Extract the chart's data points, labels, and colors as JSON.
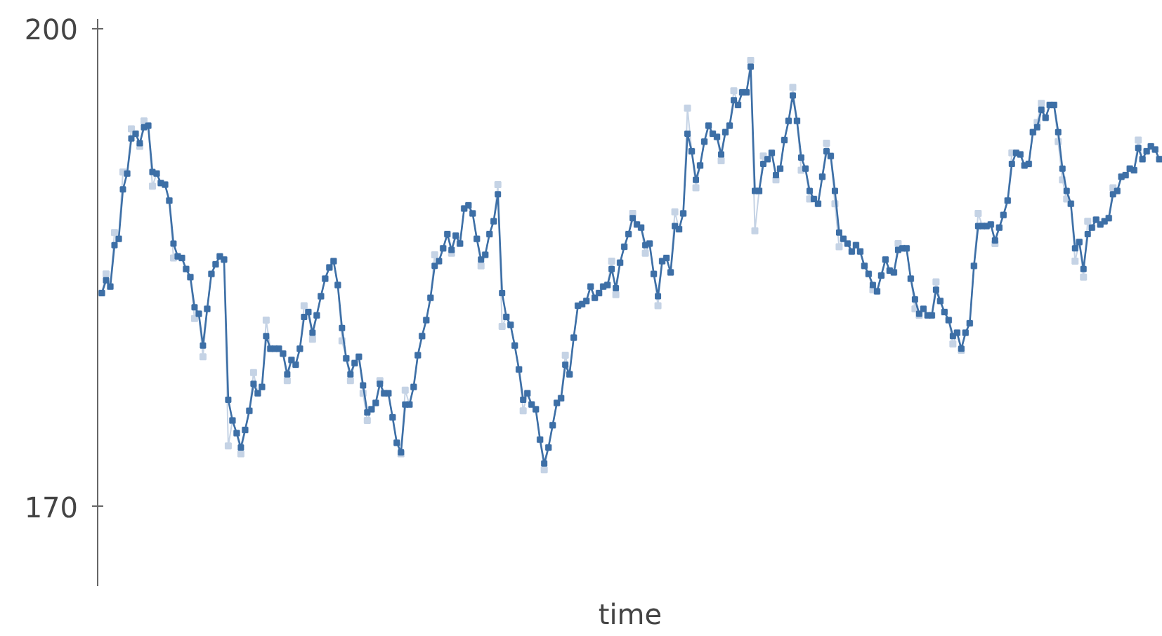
{
  "chart_data": {
    "type": "line",
    "xlabel": "time",
    "marker": "square",
    "grid": false,
    "tick_labels": "y",
    "ylim": [
      165,
      200.6
    ],
    "yticks": [
      170,
      200
    ],
    "categories": [
      null,
      null,
      null,
      null,
      null,
      null,
      null,
      null,
      null,
      null,
      null,
      null,
      null,
      null,
      null,
      null,
      null,
      null,
      null,
      null,
      null,
      null,
      null,
      null,
      null,
      null,
      null,
      null,
      null,
      null,
      null,
      null,
      null,
      null,
      null,
      null,
      null,
      null,
      null,
      null,
      null,
      null,
      null,
      null,
      null,
      null,
      null,
      null,
      null,
      null,
      null,
      null,
      null,
      null,
      null,
      null,
      null,
      null,
      null,
      null,
      null,
      null,
      null,
      null,
      null,
      null,
      null,
      null,
      null,
      null,
      null,
      null,
      null,
      null,
      null,
      null,
      null,
      null,
      null,
      null,
      null,
      null,
      null,
      null,
      null,
      null,
      null,
      null,
      null,
      null,
      null,
      null,
      null,
      null,
      null,
      null,
      null,
      null,
      null,
      null,
      null,
      null,
      null,
      null,
      null,
      null,
      null,
      null,
      null,
      null,
      null,
      null,
      null,
      null,
      null,
      null,
      null,
      null,
      null,
      null,
      null,
      null,
      null,
      null,
      null,
      null,
      null,
      null,
      null,
      null,
      null,
      null,
      null,
      null,
      null,
      null,
      null,
      null,
      null,
      null,
      null,
      null,
      null,
      null,
      null,
      null,
      null,
      null,
      null,
      null,
      null,
      null,
      null,
      null,
      null,
      null,
      null,
      null,
      null,
      null,
      null,
      null,
      null,
      null,
      null,
      null,
      null,
      null,
      null,
      null,
      null,
      null,
      null,
      null,
      null,
      null,
      null,
      null,
      null,
      null,
      null,
      null,
      null,
      null,
      null,
      null,
      null,
      null,
      null,
      null,
      null,
      null,
      null,
      null,
      null,
      null,
      null,
      null,
      null,
      null,
      null,
      null,
      null,
      null,
      null,
      null,
      null,
      null,
      null,
      null,
      null,
      null,
      null,
      null,
      null,
      null,
      null,
      null,
      null,
      null,
      null,
      null,
      null,
      null,
      null,
      null,
      null,
      null,
      null,
      null,
      null,
      null,
      null,
      null,
      null,
      null,
      null,
      null,
      null,
      null,
      null,
      null,
      null,
      null,
      null,
      null,
      null,
      null,
      null,
      null,
      null,
      null
    ],
    "series": [
      {
        "color": "#c5d3e5",
        "values": [
          183.4,
          184.6,
          183.8,
          187.2,
          186.8,
          191.0,
          190.9,
          193.7,
          193.4,
          192.6,
          194.2,
          193.9,
          190.1,
          190.9,
          190.3,
          190.2,
          189.2,
          185.6,
          185.7,
          185.6,
          184.9,
          184.4,
          181.8,
          182.1,
          179.4,
          182.4,
          184.6,
          185.2,
          185.7,
          185.5,
          173.8,
          175.4,
          174.6,
          173.3,
          174.8,
          176.0,
          178.4,
          177.1,
          177.5,
          181.7,
          179.9,
          179.9,
          179.9,
          179.6,
          177.9,
          179.2,
          178.9,
          179.9,
          182.6,
          182.2,
          180.5,
          182.0,
          183.2,
          184.3,
          185.0,
          185.4,
          183.9,
          180.4,
          179.3,
          177.9,
          179.0,
          179.4,
          177.1,
          175.4,
          176.1,
          176.5,
          177.9,
          177.1,
          177.1,
          175.6,
          174.0,
          173.3,
          177.3,
          176.4,
          177.5,
          179.5,
          180.7,
          181.7,
          183.1,
          185.8,
          185.4,
          186.2,
          187.1,
          185.9,
          187.0,
          186.5,
          188.7,
          188.9,
          188.4,
          186.8,
          185.1,
          185.8,
          187.1,
          187.9,
          190.2,
          181.3,
          181.9,
          181.4,
          180.1,
          178.6,
          176.0,
          177.1,
          176.4,
          176.1,
          174.2,
          172.3,
          173.7,
          175.1,
          176.5,
          176.8,
          179.5,
          178.3,
          180.6,
          182.6,
          182.7,
          182.9,
          183.8,
          183.1,
          183.4,
          183.8,
          183.9,
          185.4,
          183.3,
          185.3,
          186.3,
          187.1,
          188.4,
          187.7,
          187.5,
          185.9,
          186.5,
          184.6,
          182.6,
          185.4,
          185.6,
          184.7,
          188.5,
          187.4,
          188.4,
          195.0,
          192.3,
          190.0,
          191.4,
          192.9,
          193.9,
          193.4,
          193.2,
          191.7,
          193.5,
          193.9,
          196.1,
          195.2,
          196.0,
          196.0,
          198.0,
          187.3,
          189.8,
          192.0,
          191.8,
          192.2,
          190.5,
          191.2,
          193.0,
          194.2,
          196.3,
          194.2,
          191.1,
          191.2,
          189.3,
          189.3,
          189.0,
          190.7,
          192.8,
          192.0,
          189.0,
          186.3,
          186.8,
          186.5,
          186.0,
          186.4,
          186.0,
          185.1,
          184.6,
          183.6,
          183.5,
          184.5,
          185.5,
          184.8,
          184.7,
          186.5,
          186.2,
          186.2,
          184.3,
          182.4,
          182.0,
          182.4,
          182.0,
          182.0,
          184.1,
          182.9,
          182.2,
          181.7,
          180.2,
          180.9,
          179.8,
          180.9,
          181.5,
          185.1,
          188.4,
          187.6,
          187.6,
          187.7,
          186.5,
          187.5,
          188.3,
          189.2,
          192.2,
          192.2,
          192.1,
          191.4,
          191.5,
          193.5,
          194.1,
          195.3,
          194.4,
          195.2,
          195.2,
          192.9,
          190.5,
          189.3,
          189.0,
          185.4,
          186.6,
          184.4,
          187.9,
          187.5,
          188.0,
          187.7,
          187.9,
          188.1,
          190.0,
          189.8,
          190.7,
          190.8,
          191.2,
          191.1,
          193.0,
          191.8,
          192.3,
          192.6,
          192.4,
          191.8
        ]
      },
      {
        "color": "#3d6fa6",
        "values": [
          183.4,
          184.2,
          183.8,
          186.4,
          186.8,
          189.9,
          190.9,
          193.1,
          193.4,
          192.8,
          193.8,
          193.9,
          191.0,
          190.9,
          190.3,
          190.2,
          189.2,
          186.5,
          185.7,
          185.6,
          184.9,
          184.4,
          182.5,
          182.1,
          180.1,
          182.4,
          184.6,
          185.2,
          185.7,
          185.5,
          176.7,
          175.4,
          174.6,
          173.7,
          174.8,
          176.0,
          177.7,
          177.1,
          177.5,
          180.7,
          179.9,
          179.9,
          179.9,
          179.6,
          178.3,
          179.2,
          178.9,
          179.9,
          181.9,
          182.2,
          180.9,
          182.0,
          183.2,
          184.3,
          185.0,
          185.4,
          183.9,
          181.2,
          179.3,
          178.3,
          179.0,
          179.4,
          177.6,
          175.9,
          176.1,
          176.5,
          177.7,
          177.1,
          177.1,
          175.6,
          174.0,
          173.4,
          176.4,
          176.4,
          177.5,
          179.5,
          180.7,
          181.7,
          183.1,
          185.1,
          185.4,
          186.2,
          187.1,
          186.1,
          187.0,
          186.5,
          188.7,
          188.9,
          188.4,
          186.8,
          185.5,
          185.8,
          187.1,
          187.9,
          189.6,
          183.4,
          181.9,
          181.4,
          180.1,
          178.6,
          176.7,
          177.1,
          176.4,
          176.1,
          174.2,
          172.7,
          173.7,
          175.1,
          176.5,
          176.8,
          178.9,
          178.3,
          180.6,
          182.6,
          182.7,
          182.9,
          183.8,
          183.1,
          183.4,
          183.8,
          183.9,
          184.9,
          183.7,
          185.3,
          186.3,
          187.1,
          188.1,
          187.7,
          187.5,
          186.4,
          186.5,
          184.6,
          183.2,
          185.4,
          185.6,
          184.7,
          187.6,
          187.4,
          188.4,
          193.4,
          192.3,
          190.5,
          191.4,
          192.9,
          193.9,
          193.4,
          193.2,
          192.1,
          193.5,
          193.9,
          195.5,
          195.2,
          196.0,
          196.0,
          197.6,
          189.8,
          189.8,
          191.5,
          191.8,
          192.2,
          190.8,
          191.2,
          193.0,
          194.2,
          195.8,
          194.2,
          191.9,
          191.2,
          189.8,
          189.3,
          189.0,
          190.7,
          192.3,
          192.0,
          189.8,
          187.2,
          186.8,
          186.5,
          186.0,
          186.4,
          186.0,
          185.1,
          184.6,
          183.9,
          183.5,
          184.5,
          185.5,
          184.8,
          184.7,
          186.1,
          186.2,
          186.2,
          184.3,
          183.0,
          182.1,
          182.4,
          182.0,
          182.0,
          183.6,
          182.9,
          182.2,
          181.7,
          180.7,
          180.9,
          179.9,
          180.9,
          181.5,
          185.1,
          187.6,
          187.6,
          187.6,
          187.7,
          186.7,
          187.5,
          188.3,
          189.2,
          191.5,
          192.2,
          192.1,
          191.4,
          191.5,
          193.5,
          193.8,
          194.9,
          194.4,
          195.2,
          195.2,
          193.5,
          191.2,
          189.8,
          189.0,
          186.2,
          186.6,
          184.9,
          187.1,
          187.5,
          188.0,
          187.7,
          187.9,
          188.1,
          189.6,
          189.8,
          190.7,
          190.8,
          191.2,
          191.1,
          192.5,
          191.8,
          192.3,
          192.6,
          192.4,
          191.8
        ]
      }
    ]
  }
}
